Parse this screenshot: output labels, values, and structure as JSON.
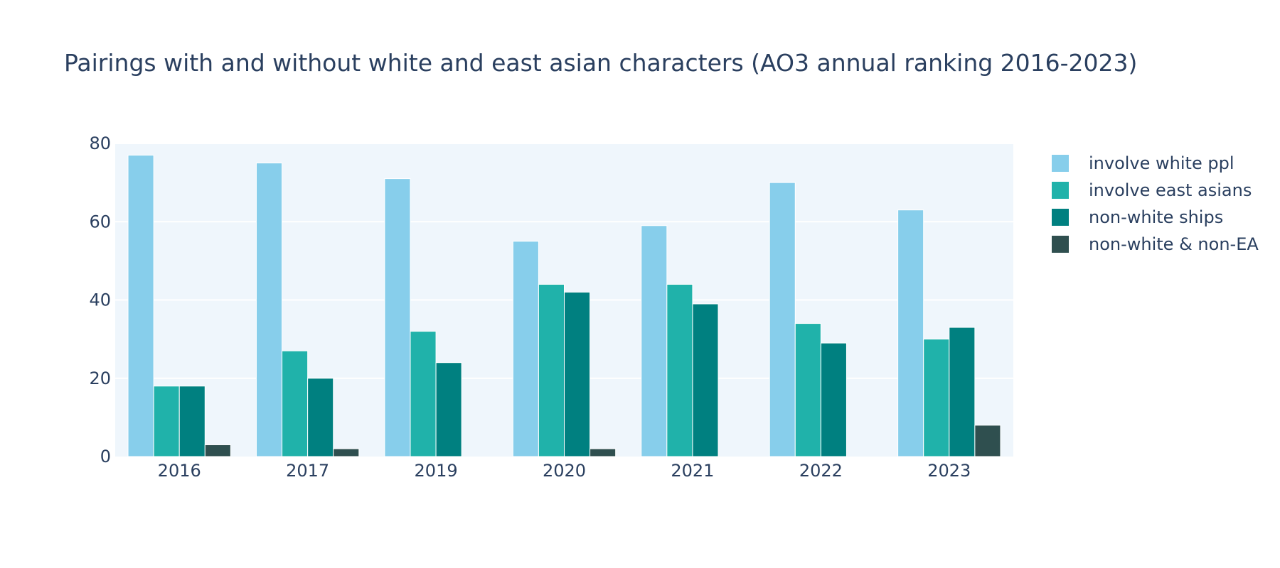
{
  "chart_data": {
    "type": "bar",
    "title": "Pairings with and without white and east asian characters (AO3 annual ranking 2016-2023)",
    "xlabel": "",
    "ylabel": "",
    "categories": [
      "2016",
      "2017",
      "2019",
      "2020",
      "2021",
      "2022",
      "2023"
    ],
    "ylim": [
      0,
      80
    ],
    "yticks": [
      0,
      20,
      40,
      60,
      80
    ],
    "grid": true,
    "legend_position": "right",
    "series": [
      {
        "name": "involve white ppl",
        "color": "#87ceeb",
        "values": [
          77,
          75,
          71,
          55,
          59,
          70,
          63
        ]
      },
      {
        "name": "involve east asians",
        "color": "#20b2aa",
        "values": [
          18,
          27,
          32,
          44,
          44,
          34,
          30
        ]
      },
      {
        "name": "non-white ships",
        "color": "#008080",
        "values": [
          18,
          20,
          24,
          42,
          39,
          29,
          33
        ]
      },
      {
        "name": "non-white & non-EA",
        "color": "#2f4f4f",
        "values": [
          3,
          2,
          0,
          2,
          0,
          0,
          8
        ]
      }
    ]
  }
}
